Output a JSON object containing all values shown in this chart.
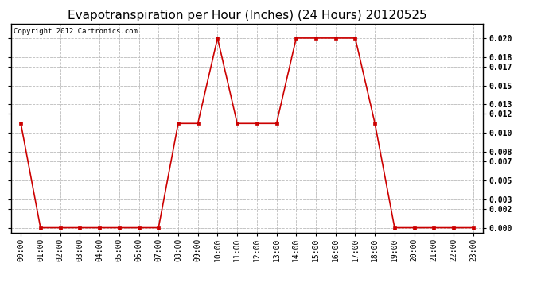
{
  "title": "Evapotranspiration per Hour (Inches) (24 Hours) 20120525",
  "copyright": "Copyright 2012 Cartronics.com",
  "hours": [
    0,
    1,
    2,
    3,
    4,
    5,
    6,
    7,
    8,
    9,
    10,
    11,
    12,
    13,
    14,
    15,
    16,
    17,
    18,
    19,
    20,
    21,
    22,
    23
  ],
  "values": [
    0.011,
    0.0,
    0.0,
    0.0,
    0.0,
    0.0,
    0.0,
    0.0,
    0.011,
    0.011,
    0.02,
    0.011,
    0.011,
    0.011,
    0.02,
    0.02,
    0.02,
    0.02,
    0.011,
    0.0,
    0.0,
    0.0,
    0.0,
    0.0
  ],
  "line_color": "#cc0000",
  "marker_color": "#cc0000",
  "bg_color": "#ffffff",
  "plot_bg_color": "#ffffff",
  "grid_color": "#bbbbbb",
  "title_fontsize": 11,
  "copyright_fontsize": 6.5,
  "tick_label_fontsize": 7,
  "ytick_values": [
    0.0,
    0.002,
    0.003,
    0.005,
    0.007,
    0.008,
    0.01,
    0.012,
    0.013,
    0.015,
    0.017,
    0.018,
    0.02
  ],
  "ylim": [
    -0.0005,
    0.0215
  ]
}
